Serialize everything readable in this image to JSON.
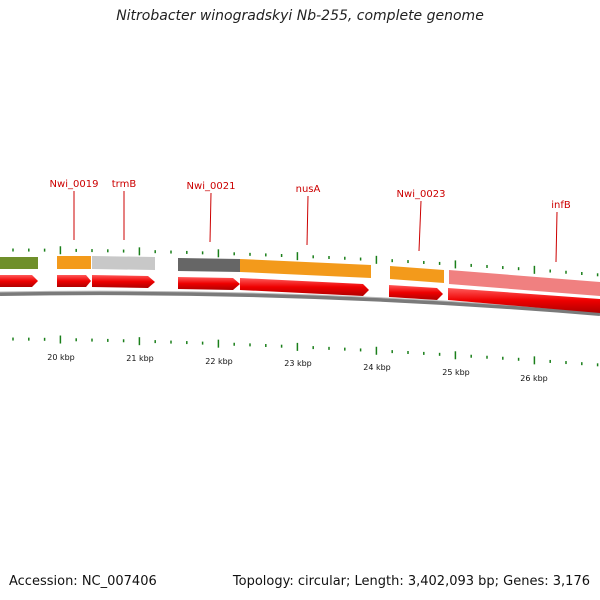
{
  "title": "Nitrobacter winogradskyi Nb-255, complete genome",
  "footer": {
    "accession": "Accession: NC_007406",
    "summary": "Topology: circular; Length: 3,402,093 bp; Genes: 3,176"
  },
  "colors": {
    "cds_arrow": "#ee0000",
    "backbone": "#7a7a7a",
    "tick": "#1a7f1a",
    "label": "#cc0000"
  },
  "gene_labels": [
    {
      "name": "Nwi_0019"
    },
    {
      "name": "trmB"
    },
    {
      "name": "Nwi_0021"
    },
    {
      "name": "nusA"
    },
    {
      "name": "Nwi_0023"
    },
    {
      "name": "infB"
    }
  ],
  "kbp_labels": [
    "20 kbp",
    "21 kbp",
    "22 kbp",
    "23 kbp",
    "24 kbp",
    "25 kbp",
    "26 kbp"
  ],
  "feature_bars": [
    {
      "color": "#6f8f2a"
    },
    {
      "color": "#f39a1b"
    },
    {
      "color": "#c8c8c8"
    },
    {
      "color": "#666666"
    },
    {
      "color": "#f39a1b"
    },
    {
      "color": "#f39a1b"
    },
    {
      "color": "#f08080"
    }
  ]
}
